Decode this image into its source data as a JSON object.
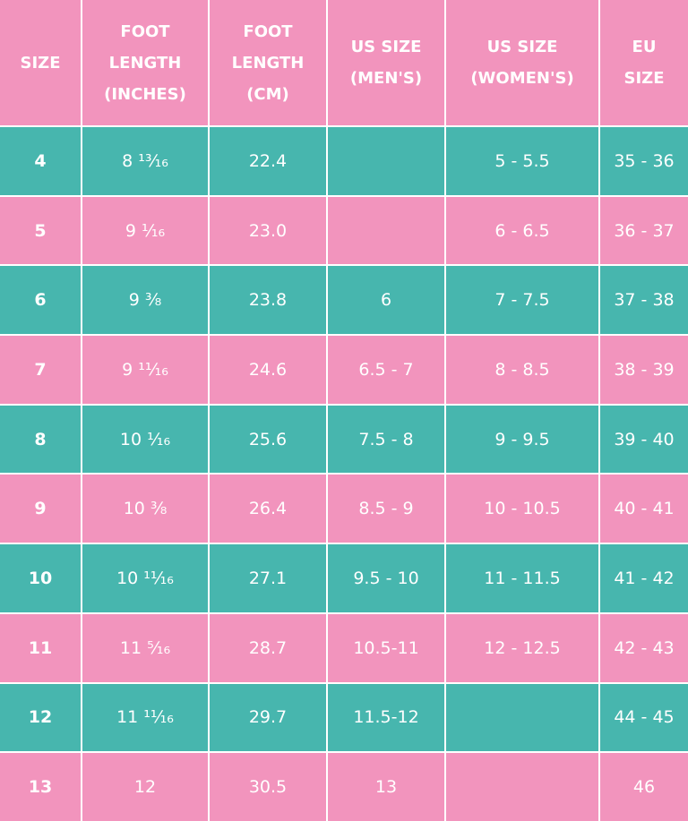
{
  "table": {
    "header": [
      [
        "SIZE"
      ],
      [
        "FOOT",
        "LENGTH",
        "(INCHES)"
      ],
      [
        "FOOT",
        "LENGTH",
        "(CM)"
      ],
      [
        "US SIZE",
        "(MEN'S)"
      ],
      [
        "US SIZE",
        "(WOMEN'S)"
      ],
      [
        "EU",
        "SIZE"
      ]
    ],
    "rows": [
      [
        "4",
        "8 ¹³⁄₁₆",
        "22.4",
        null,
        "5 - 5.5",
        "35 - 36"
      ],
      [
        "5",
        "9 ¹⁄₁₆",
        "23.0",
        null,
        "6 - 6.5",
        "36 - 37"
      ],
      [
        "6",
        "9 ³⁄₈",
        "23.8",
        "6",
        "7 - 7.5",
        "37 - 38"
      ],
      [
        "7",
        "9 ¹¹⁄₁₆",
        "24.6",
        "6.5 - 7",
        "8 - 8.5",
        "38 - 39"
      ],
      [
        "8",
        "10 ¹⁄₁₆",
        "25.6",
        "7.5 - 8",
        "9 - 9.5",
        "39 - 40"
      ],
      [
        "9",
        "10 ³⁄₈",
        "26.4",
        "8.5 - 9",
        "10 - 10.5",
        "40 - 41"
      ],
      [
        "10",
        "10 ¹¹⁄₁₆",
        "27.1",
        "9.5 - 10",
        "11 - 11.5",
        "41 - 42"
      ],
      [
        "11",
        "11 ⁵⁄₁₆",
        "28.7",
        "10.5-11",
        "12 - 12.5",
        "42 - 43"
      ],
      [
        "12",
        "11 ¹¹⁄₁₆",
        "29.7",
        "11.5-12",
        null,
        "44 - 45"
      ],
      [
        "13",
        "12",
        "30.5",
        "13",
        null,
        "46"
      ]
    ]
  }
}
